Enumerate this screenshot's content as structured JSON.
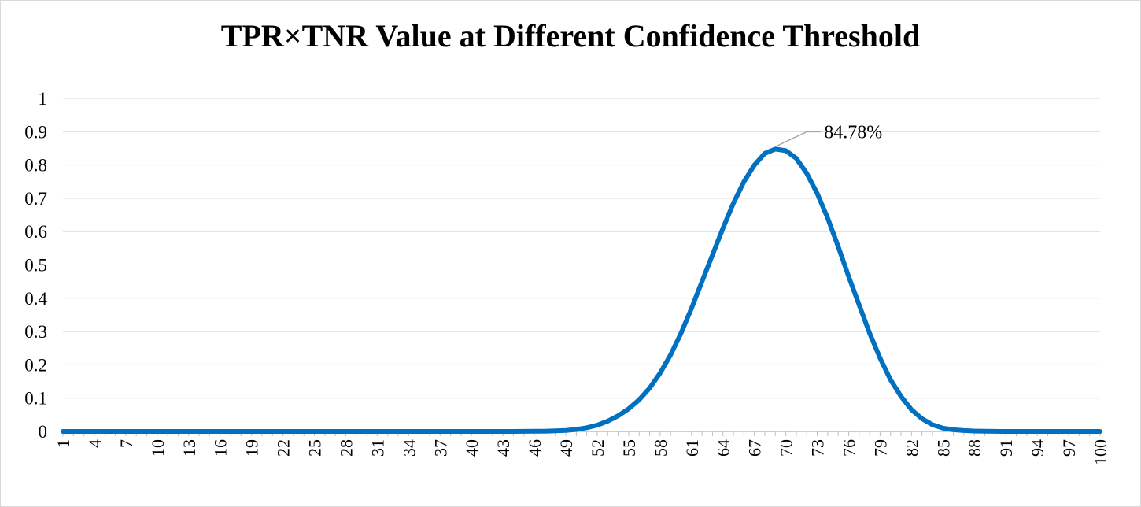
{
  "chart_data": {
    "type": "line",
    "title": "TPR×TNR Value at Different Confidence Threshold",
    "xlabel": "",
    "ylabel": "",
    "ylim": [
      0,
      1
    ],
    "yticks": [
      "0",
      "0.1",
      "0.2",
      "0.3",
      "0.4",
      "0.5",
      "0.6",
      "0.7",
      "0.8",
      "0.9",
      "1"
    ],
    "xticks": [
      "1",
      "4",
      "7",
      "10",
      "13",
      "16",
      "19",
      "22",
      "25",
      "28",
      "31",
      "34",
      "37",
      "40",
      "43",
      "46",
      "49",
      "52",
      "55",
      "58",
      "61",
      "64",
      "67",
      "70",
      "73",
      "76",
      "79",
      "82",
      "85",
      "88",
      "91",
      "94",
      "97",
      "100"
    ],
    "grid": true,
    "legend": "none",
    "line_color": "#0070C0",
    "series": [
      {
        "x": [
          1,
          2,
          3,
          4,
          5,
          6,
          7,
          8,
          9,
          10,
          11,
          12,
          13,
          14,
          15,
          16,
          17,
          18,
          19,
          20,
          21,
          22,
          23,
          24,
          25,
          26,
          27,
          28,
          29,
          30,
          31,
          32,
          33,
          34,
          35,
          36,
          37,
          38,
          39,
          40,
          41,
          42,
          43,
          44,
          45,
          46,
          47,
          48,
          49,
          50,
          51,
          52,
          53,
          54,
          55,
          56,
          57,
          58,
          59,
          60,
          61,
          62,
          63,
          64,
          65,
          66,
          67,
          68,
          69,
          70,
          71,
          72,
          73,
          74,
          75,
          76,
          77,
          78,
          79,
          80,
          81,
          82,
          83,
          84,
          85,
          86,
          87,
          88,
          89,
          90,
          91,
          92,
          93,
          94,
          95,
          96,
          97,
          98,
          99,
          100
        ],
        "values": [
          0,
          0,
          0,
          0,
          0,
          0,
          0,
          0,
          0,
          0,
          0,
          0,
          0,
          0,
          0,
          0,
          0,
          0,
          0,
          0,
          0,
          0,
          0,
          0,
          0,
          0,
          0,
          0,
          0,
          0,
          0,
          0,
          0,
          0,
          0,
          0,
          0,
          0,
          0,
          0,
          0,
          0,
          0,
          0.0001,
          0.0002,
          0.0004,
          0.0008,
          0.0016,
          0.003,
          0.006,
          0.011,
          0.019,
          0.031,
          0.047,
          0.068,
          0.095,
          0.13,
          0.175,
          0.23,
          0.295,
          0.37,
          0.45,
          0.53,
          0.61,
          0.685,
          0.75,
          0.8,
          0.835,
          0.8478,
          0.843,
          0.82,
          0.775,
          0.715,
          0.64,
          0.555,
          0.465,
          0.38,
          0.295,
          0.22,
          0.155,
          0.105,
          0.065,
          0.038,
          0.02,
          0.01,
          0.005,
          0.0025,
          0.0012,
          0.0005,
          0.0002,
          0.0001,
          0,
          0,
          0,
          0,
          0,
          0,
          0,
          0,
          0
        ]
      }
    ],
    "annotation": {
      "x": 69,
      "y": 0.8478,
      "text": "84.78%"
    }
  }
}
